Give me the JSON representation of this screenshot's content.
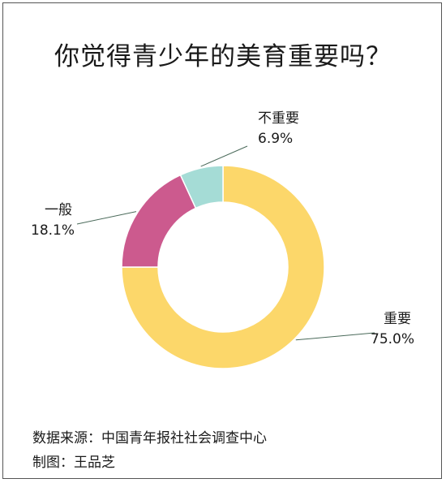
{
  "title": "你觉得青少年的美育重要吗？",
  "chart_data": {
    "type": "pie",
    "style": "donut",
    "categories": [
      "重要",
      "一般",
      "不重要"
    ],
    "values": [
      75.0,
      18.1,
      6.9
    ],
    "value_labels": [
      "75.0%",
      "18.1%",
      "6.9%"
    ],
    "colors": [
      "#FCD76A",
      "#CC5A8E",
      "#A5DCD6"
    ]
  },
  "footer": {
    "source": "数据来源：中国青年报社社会调查中心",
    "maker": "制图：王品芝"
  }
}
